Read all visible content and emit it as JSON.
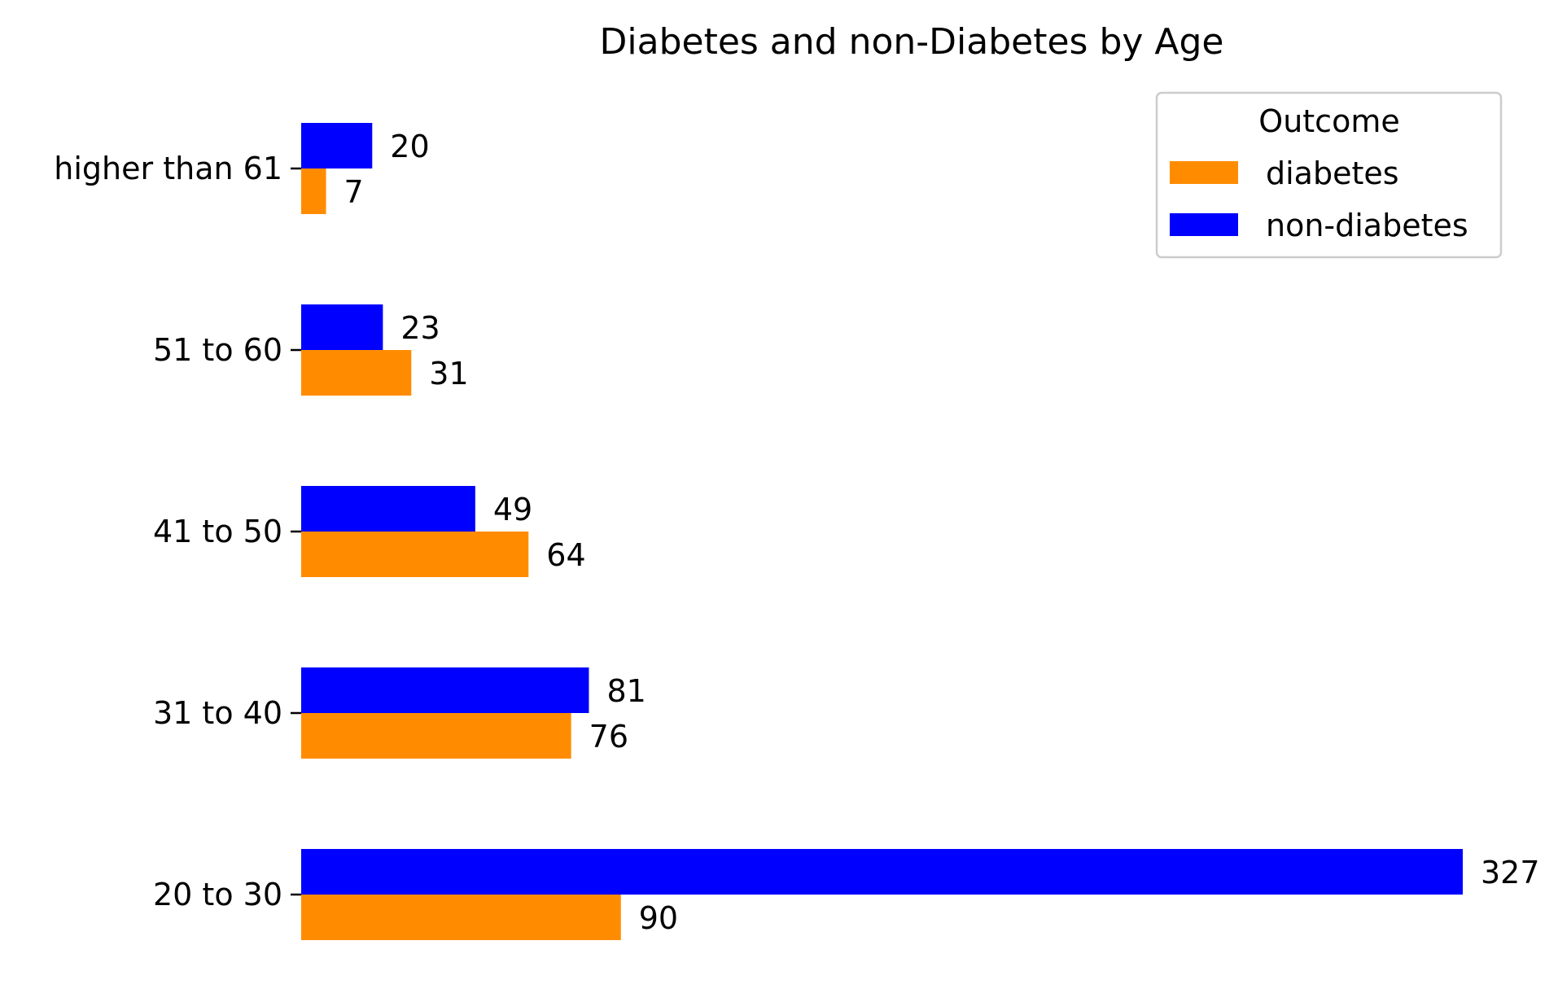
{
  "chart_data": {
    "type": "bar",
    "orientation": "horizontal",
    "title": "Diabetes and non-Diabetes by Age",
    "xlabel": "",
    "ylabel": "",
    "categories": [
      "20 to 30",
      "31 to 40",
      "41 to 50",
      "51 to 60",
      "higher than 61"
    ],
    "series": [
      {
        "name": "non-diabetes",
        "color": "#0000ff",
        "values": [
          327,
          81,
          49,
          23,
          20
        ]
      },
      {
        "name": "diabetes",
        "color": "#ff8c00",
        "values": [
          90,
          76,
          64,
          31,
          7
        ]
      }
    ],
    "xlim": [
      0,
      327
    ],
    "grid": false,
    "legend": {
      "title": "Outcome",
      "placement": "top-right",
      "entries": [
        "diabetes",
        "non-diabetes"
      ]
    }
  }
}
